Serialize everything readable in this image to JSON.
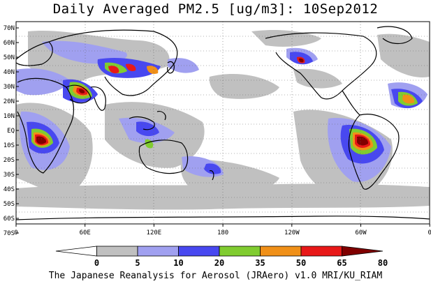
{
  "title": "Daily Averaged PM2.5 [ug/m3]: 10Sep2012",
  "footer": "The Japanese Reanalysis for Aerosol (JRAero) v1.0 MRI/KU_RIAM",
  "map": {
    "lat_labels": [
      "70N",
      "60N",
      "50N",
      "40N",
      "30N",
      "20N",
      "10N",
      "EQ",
      "10S",
      "20S",
      "30S",
      "40S",
      "50S",
      "60S",
      "70S"
    ],
    "lon_labels": [
      "0",
      "60E",
      "120E",
      "180",
      "120W",
      "60W",
      "0"
    ]
  },
  "colorbar": {
    "levels": [
      "0",
      "5",
      "10",
      "20",
      "35",
      "50",
      "65",
      "80"
    ],
    "colors": [
      "#ffffff",
      "#c0c0c0",
      "#a0a0f0",
      "#4848f0",
      "#80cc30",
      "#f09018",
      "#e81818",
      "#800000"
    ]
  }
}
